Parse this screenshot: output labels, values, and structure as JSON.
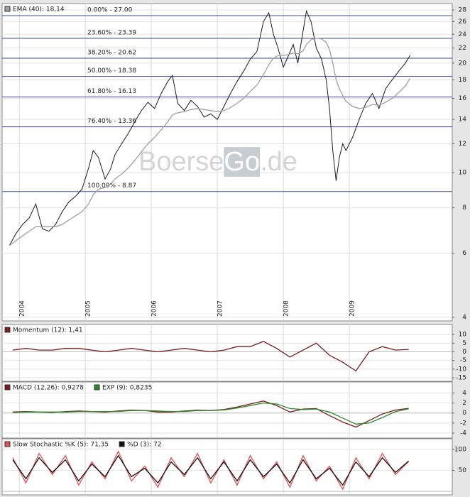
{
  "chart_data": [
    {
      "type": "line",
      "log": true,
      "grid": true,
      "watermark": [
        "Boerse",
        "Go",
        ".de"
      ],
      "xlim": [
        2003.74,
        2010.56
      ],
      "xticks": [
        2004,
        2005,
        2006,
        2007,
        2008,
        2009
      ],
      "ylim": [
        3.91,
        29.15
      ],
      "yticks": [
        4,
        6,
        8,
        10,
        12,
        14,
        16,
        18,
        20,
        22,
        24,
        26,
        28
      ],
      "x": [
        2003.85,
        2003.95,
        2004.05,
        2004.15,
        2004.25,
        2004.35,
        2004.45,
        2004.55,
        2004.65,
        2004.75,
        2004.85,
        2004.95,
        2005.05,
        2005.12,
        2005.2,
        2005.3,
        2005.38,
        2005.45,
        2005.55,
        2005.65,
        2005.75,
        2005.85,
        2005.95,
        2006.05,
        2006.15,
        2006.25,
        2006.32,
        2006.4,
        2006.5,
        2006.6,
        2006.7,
        2006.8,
        2006.9,
        2007.0,
        2007.1,
        2007.2,
        2007.3,
        2007.4,
        2007.5,
        2007.6,
        2007.7,
        2007.78,
        2007.85,
        2007.92,
        2008.0,
        2008.08,
        2008.15,
        2008.22,
        2008.3,
        2008.35,
        2008.42,
        2008.5,
        2008.58,
        2008.65,
        2008.7,
        2008.75,
        2008.8,
        2008.85,
        2008.9,
        2008.95,
        2009.05,
        2009.15,
        2009.25,
        2009.35,
        2009.45,
        2009.55,
        2009.65,
        2009.75,
        2009.85,
        2009.92
      ],
      "series": [
        {
          "color": "#1a1a1a",
          "values": [
            6.3,
            6.8,
            7.2,
            7.5,
            8.2,
            7.0,
            6.9,
            7.2,
            7.8,
            8.3,
            8.6,
            9.0,
            10.3,
            11.5,
            11.0,
            9.6,
            10.2,
            11.2,
            12.0,
            12.8,
            13.8,
            14.8,
            15.6,
            15.0,
            16.5,
            17.8,
            18.5,
            15.5,
            14.8,
            15.8,
            15.2,
            14.2,
            14.5,
            14.0,
            15.2,
            16.5,
            17.8,
            19.0,
            20.5,
            21.5,
            26.0,
            27.5,
            24.0,
            22.0,
            19.5,
            21.0,
            22.5,
            20.0,
            24.5,
            27.8,
            26.0,
            22.0,
            20.5,
            18.0,
            15.0,
            11.5,
            9.5,
            11.0,
            12.0,
            11.5,
            12.5,
            14.0,
            15.5,
            16.5,
            15.0,
            17.0,
            18.0,
            19.0,
            20.0,
            21.0
          ]
        },
        {
          "name": "EMA (40): 18,14",
          "color": "#a0a0a0",
          "values": [
            6.3,
            6.5,
            6.7,
            6.9,
            7.1,
            7.1,
            7.1,
            7.1,
            7.2,
            7.4,
            7.6,
            7.8,
            8.2,
            8.7,
            9.0,
            9.1,
            9.3,
            9.6,
            9.9,
            10.3,
            10.8,
            11.4,
            12.0,
            12.5,
            13.1,
            13.8,
            14.4,
            14.6,
            14.7,
            14.9,
            15.0,
            14.9,
            14.8,
            14.7,
            14.8,
            15.1,
            15.5,
            16.0,
            16.7,
            17.4,
            18.6,
            19.8,
            20.6,
            21.0,
            21.0,
            21.1,
            21.3,
            21.2,
            21.6,
            22.5,
            23.2,
            23.4,
            23.3,
            22.8,
            21.8,
            20.0,
            18.0,
            17.0,
            16.3,
            15.7,
            15.2,
            15.0,
            15.1,
            15.4,
            15.3,
            15.6,
            16.0,
            16.6,
            17.3,
            18.14
          ]
        }
      ],
      "levels": [
        {
          "value": 27.0,
          "label": "0.00% - 27.00"
        },
        {
          "value": 23.39,
          "label": "23.60% - 23.39"
        },
        {
          "value": 20.62,
          "label": "38.20% - 20.62"
        },
        {
          "value": 18.38,
          "label": "50.00% - 18.38"
        },
        {
          "value": 16.13,
          "label": "61.80% - 16.13"
        },
        {
          "value": 13.36,
          "label": "76.40% - 13.36"
        },
        {
          "value": 8.87,
          "label": "100.00% - 8.87"
        }
      ]
    },
    {
      "type": "line",
      "xlim": [
        2003.74,
        2010.56
      ],
      "ylim": [
        -17,
        15.8
      ],
      "yticks": [
        10,
        5,
        0,
        -5,
        -10,
        -15
      ],
      "x": [
        2003.9,
        2004.1,
        2004.3,
        2004.5,
        2004.7,
        2004.9,
        2005.1,
        2005.3,
        2005.5,
        2005.7,
        2005.9,
        2006.1,
        2006.3,
        2006.5,
        2006.7,
        2006.9,
        2007.1,
        2007.3,
        2007.5,
        2007.7,
        2007.9,
        2008.1,
        2008.3,
        2008.5,
        2008.7,
        2008.9,
        2009.1,
        2009.3,
        2009.5,
        2009.7,
        2009.9
      ],
      "series": [
        {
          "name": "Momentum (12): 1,41",
          "color": "#7a1a1a",
          "values": [
            1,
            2,
            1,
            1,
            2,
            2,
            1,
            0,
            1,
            2,
            1,
            0,
            1,
            2,
            1,
            0,
            1,
            3,
            3,
            6,
            2,
            -3,
            1,
            5,
            -2,
            -6,
            -11,
            0,
            3,
            1,
            1.41
          ]
        }
      ]
    },
    {
      "type": "line",
      "xlim": [
        2003.74,
        2010.56
      ],
      "ylim": [
        -5,
        6.2
      ],
      "yticks": [
        4,
        2,
        0,
        -2,
        -4
      ],
      "x": [
        2003.9,
        2004.1,
        2004.3,
        2004.5,
        2004.7,
        2004.9,
        2005.1,
        2005.3,
        2005.5,
        2005.7,
        2005.9,
        2006.1,
        2006.3,
        2006.5,
        2006.7,
        2006.9,
        2007.1,
        2007.3,
        2007.5,
        2007.7,
        2007.9,
        2008.1,
        2008.3,
        2008.5,
        2008.7,
        2008.9,
        2009.1,
        2009.3,
        2009.5,
        2009.7,
        2009.9
      ],
      "series": [
        {
          "name": "MACD (12,26): 0,9278",
          "color": "#7a1a1a",
          "values": [
            0.2,
            0.3,
            0.2,
            0.1,
            0.3,
            0.4,
            0.3,
            0.2,
            0.4,
            0.6,
            0.5,
            0.2,
            0.2,
            0.4,
            0.6,
            0.5,
            0.7,
            1.2,
            1.8,
            2.4,
            1.5,
            0.2,
            0.8,
            0.9,
            -0.5,
            -1.8,
            -2.8,
            -1.5,
            -0.2,
            0.6,
            0.9278
          ]
        },
        {
          "name": "EXP (9): 0,8235",
          "color": "#2a8a2a",
          "values": [
            0.1,
            0.2,
            0.2,
            0.2,
            0.2,
            0.3,
            0.3,
            0.3,
            0.3,
            0.5,
            0.5,
            0.4,
            0.3,
            0.3,
            0.5,
            0.5,
            0.6,
            1.0,
            1.5,
            2.0,
            1.8,
            0.9,
            0.7,
            0.8,
            0.2,
            -1.0,
            -2.2,
            -2.0,
            -0.9,
            0.3,
            0.8235
          ]
        }
      ]
    },
    {
      "type": "line",
      "xlim": [
        2003.74,
        2010.56
      ],
      "ylim": [
        -8.3,
        125
      ],
      "yticks": [
        100,
        50
      ],
      "x": [
        2003.9,
        2004.1,
        2004.3,
        2004.5,
        2004.7,
        2004.9,
        2005.1,
        2005.3,
        2005.5,
        2005.7,
        2005.9,
        2006.1,
        2006.3,
        2006.5,
        2006.7,
        2006.9,
        2007.1,
        2007.3,
        2007.5,
        2007.7,
        2007.9,
        2008.1,
        2008.3,
        2008.5,
        2008.7,
        2008.9,
        2009.1,
        2009.3,
        2009.5,
        2009.7,
        2009.9
      ],
      "series": [
        {
          "name": "Slow Stochastic %K (5): 71,35",
          "color": "#e05050",
          "values": [
            80,
            20,
            90,
            40,
            85,
            15,
            70,
            30,
            95,
            25,
            60,
            10,
            80,
            35,
            90,
            20,
            75,
            15,
            85,
            30,
            70,
            10,
            85,
            25,
            60,
            5,
            80,
            30,
            90,
            40,
            71.35
          ]
        },
        {
          "name": "%D (3): 72",
          "color": "#111111",
          "values": [
            75,
            30,
            80,
            45,
            75,
            25,
            65,
            35,
            85,
            35,
            55,
            20,
            70,
            40,
            80,
            30,
            70,
            25,
            75,
            35,
            65,
            20,
            75,
            30,
            55,
            15,
            70,
            35,
            80,
            45,
            72
          ]
        }
      ]
    }
  ]
}
